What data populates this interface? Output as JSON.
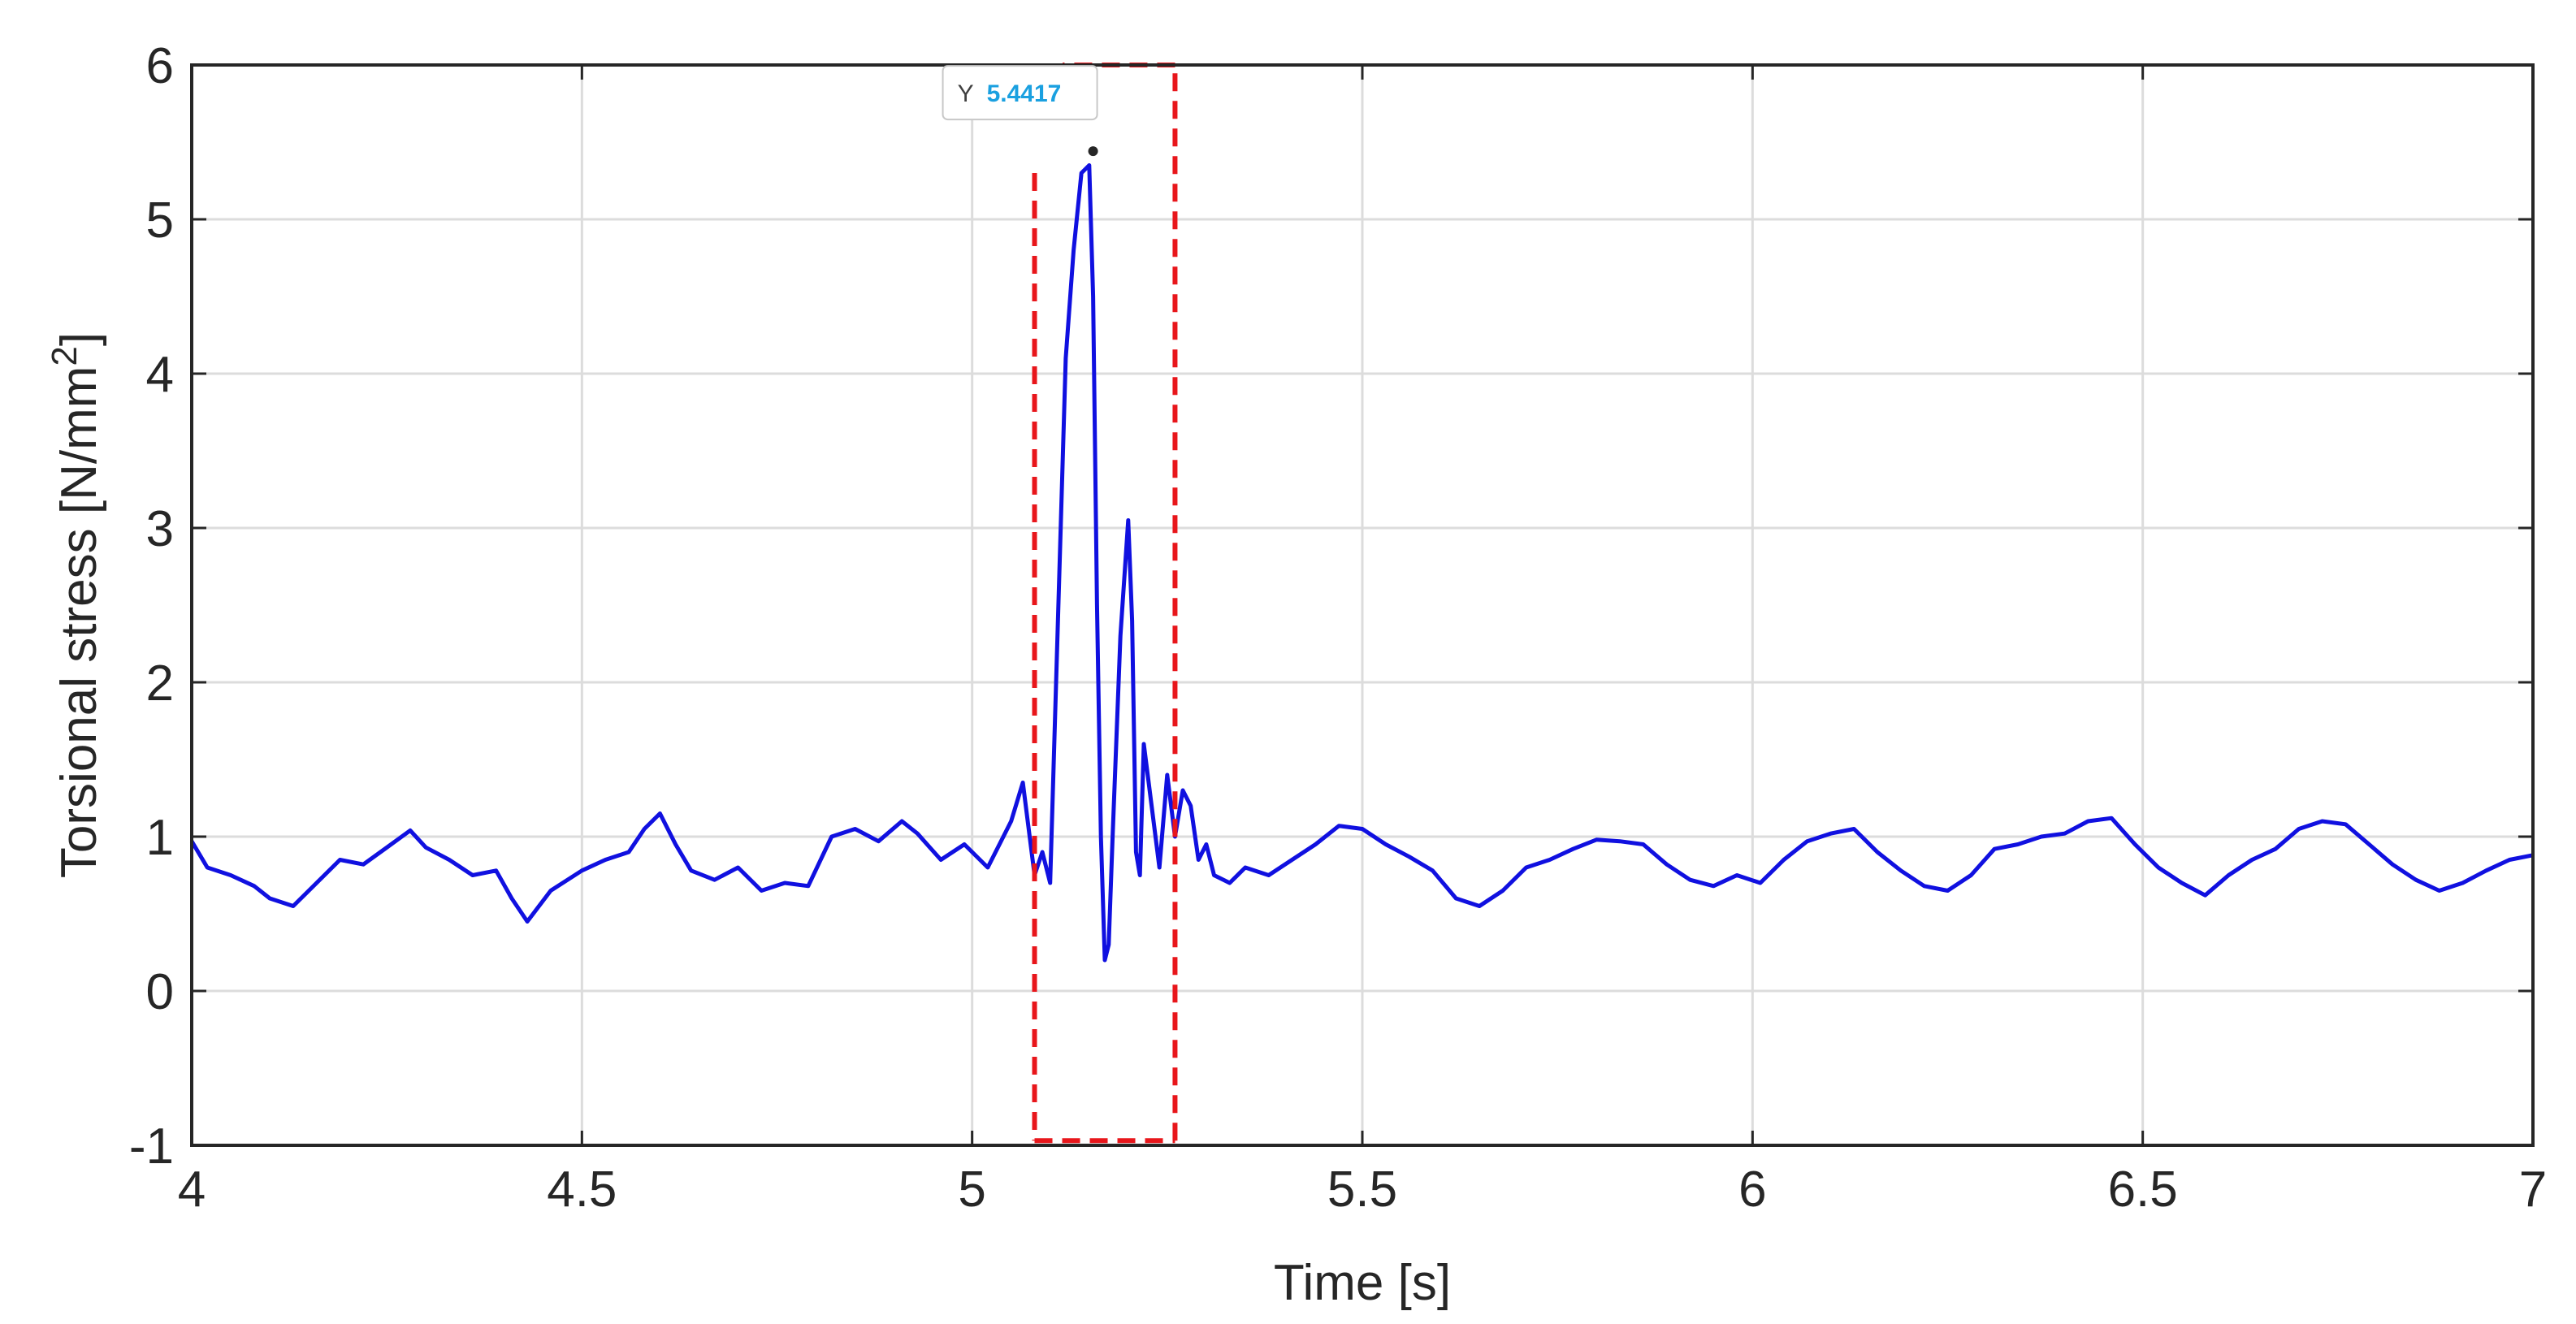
{
  "chart_data": {
    "type": "line",
    "title": "",
    "xlabel": "Time [s]",
    "ylabel": "Torsional stress [N/mm",
    "ylabel_sup": "2",
    "ylabel_end": "]",
    "xlim": [
      4,
      7
    ],
    "ylim": [
      -1,
      6
    ],
    "xticks": [
      "4",
      "4.5",
      "5",
      "5.5",
      "6",
      "6.5",
      "7"
    ],
    "yticks": [
      "-1",
      "0",
      "1",
      "2",
      "3",
      "4",
      "5",
      "6"
    ],
    "grid": true,
    "series": [
      {
        "color": "#1010e0",
        "x": [
          4.0,
          4.02,
          4.05,
          4.08,
          4.1,
          4.13,
          4.16,
          4.19,
          4.22,
          4.25,
          4.28,
          4.3,
          4.33,
          4.36,
          4.39,
          4.41,
          4.43,
          4.46,
          4.5,
          4.53,
          4.56,
          4.58,
          4.6,
          4.62,
          4.64,
          4.67,
          4.7,
          4.73,
          4.76,
          4.79,
          4.82,
          4.85,
          4.88,
          4.91,
          4.93,
          4.96,
          4.99,
          5.02,
          5.05,
          5.065,
          5.08,
          5.09,
          5.1,
          5.11,
          5.12,
          5.13,
          5.14,
          5.15,
          5.155,
          5.16,
          5.165,
          5.17,
          5.175,
          5.18,
          5.19,
          5.2,
          5.205,
          5.21,
          5.215,
          5.22,
          5.23,
          5.24,
          5.25,
          5.26,
          5.27,
          5.28,
          5.29,
          5.3,
          5.31,
          5.33,
          5.35,
          5.38,
          5.41,
          5.44,
          5.47,
          5.5,
          5.53,
          5.56,
          5.59,
          5.62,
          5.65,
          5.68,
          5.71,
          5.74,
          5.77,
          5.8,
          5.83,
          5.86,
          5.89,
          5.92,
          5.95,
          5.98,
          6.01,
          6.04,
          6.07,
          6.1,
          6.13,
          6.16,
          6.19,
          6.22,
          6.25,
          6.28,
          6.31,
          6.34,
          6.37,
          6.4,
          6.43,
          6.46,
          6.49,
          6.52,
          6.55,
          6.58,
          6.61,
          6.64,
          6.67,
          6.7,
          6.73,
          6.76,
          6.79,
          6.82,
          6.85,
          6.88,
          6.91,
          6.94,
          6.97,
          7.0
        ],
        "y": [
          0.97,
          0.8,
          0.75,
          0.68,
          0.6,
          0.55,
          0.7,
          0.85,
          0.82,
          0.93,
          1.04,
          0.93,
          0.85,
          0.75,
          0.78,
          0.6,
          0.45,
          0.65,
          0.78,
          0.85,
          0.9,
          1.05,
          1.15,
          0.95,
          0.78,
          0.72,
          0.8,
          0.65,
          0.7,
          0.68,
          1.0,
          1.05,
          0.97,
          1.1,
          1.02,
          0.85,
          0.95,
          0.8,
          1.1,
          1.35,
          0.75,
          0.9,
          0.7,
          2.4,
          4.1,
          4.8,
          5.3,
          5.35,
          4.5,
          2.5,
          1.0,
          0.2,
          0.3,
          1.0,
          2.3,
          3.05,
          2.4,
          0.9,
          0.75,
          1.6,
          1.2,
          0.8,
          1.4,
          1.0,
          1.3,
          1.2,
          0.85,
          0.95,
          0.75,
          0.7,
          0.8,
          0.75,
          0.85,
          0.95,
          1.07,
          1.05,
          0.95,
          0.87,
          0.78,
          0.6,
          0.55,
          0.65,
          0.8,
          0.85,
          0.92,
          0.98,
          0.97,
          0.95,
          0.82,
          0.72,
          0.68,
          0.75,
          0.7,
          0.85,
          0.97,
          1.02,
          1.05,
          0.9,
          0.78,
          0.68,
          0.65,
          0.75,
          0.92,
          0.95,
          1.0,
          1.02,
          1.1,
          1.12,
          0.95,
          0.8,
          0.7,
          0.62,
          0.75,
          0.85,
          0.92,
          1.05,
          1.1,
          1.08,
          0.95,
          0.82,
          0.72,
          0.65,
          0.7,
          0.78,
          0.85,
          0.88
        ]
      }
    ],
    "datatip": {
      "x": 5.155,
      "y": 5.4417,
      "key": "Y",
      "value": "5.4417",
      "value_color": "#1aa0e0"
    },
    "highlight_box": {
      "x": [
        5.08,
        5.26
      ],
      "y": [
        -0.97,
        6.0
      ],
      "color": "#e8161b",
      "left_top_y": 5.3
    }
  }
}
